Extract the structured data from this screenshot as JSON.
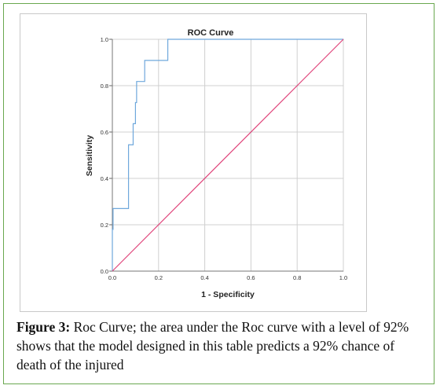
{
  "chart_data": {
    "type": "line",
    "title": "ROC Curve",
    "xlabel": "1 - Specificity",
    "ylabel": "Sensitivity",
    "xlim": [
      0.0,
      1.0
    ],
    "ylim": [
      0.0,
      1.0
    ],
    "x_ticks": [
      "0.0",
      "0.2",
      "0.4",
      "0.6",
      "0.8",
      "1.0"
    ],
    "y_ticks": [
      "0.0",
      "0.2",
      "0.4",
      "0.6",
      "0.8",
      "1.0"
    ],
    "grid": true,
    "legend": "none",
    "series": [
      {
        "color": "#6fa8dc",
        "x": [
          0.0,
          0.0,
          0.003,
          0.003,
          0.07,
          0.07,
          0.09,
          0.09,
          0.1,
          0.1,
          0.105,
          0.105,
          0.14,
          0.14,
          0.24,
          0.24,
          1.0
        ],
        "y": [
          0.0,
          0.18,
          0.18,
          0.27,
          0.27,
          0.545,
          0.545,
          0.636,
          0.636,
          0.727,
          0.727,
          0.818,
          0.818,
          0.909,
          0.909,
          1.0,
          1.0
        ]
      },
      {
        "color": "#e0457b",
        "x": [
          0.0,
          1.0
        ],
        "y": [
          0.0,
          1.0
        ]
      }
    ]
  },
  "caption": {
    "label": "Figure 3:",
    "text": " Roc Curve; the area under the Roc curve with a level of 92% shows that the model designed in this table predicts a 92% chance of death of the injured"
  }
}
